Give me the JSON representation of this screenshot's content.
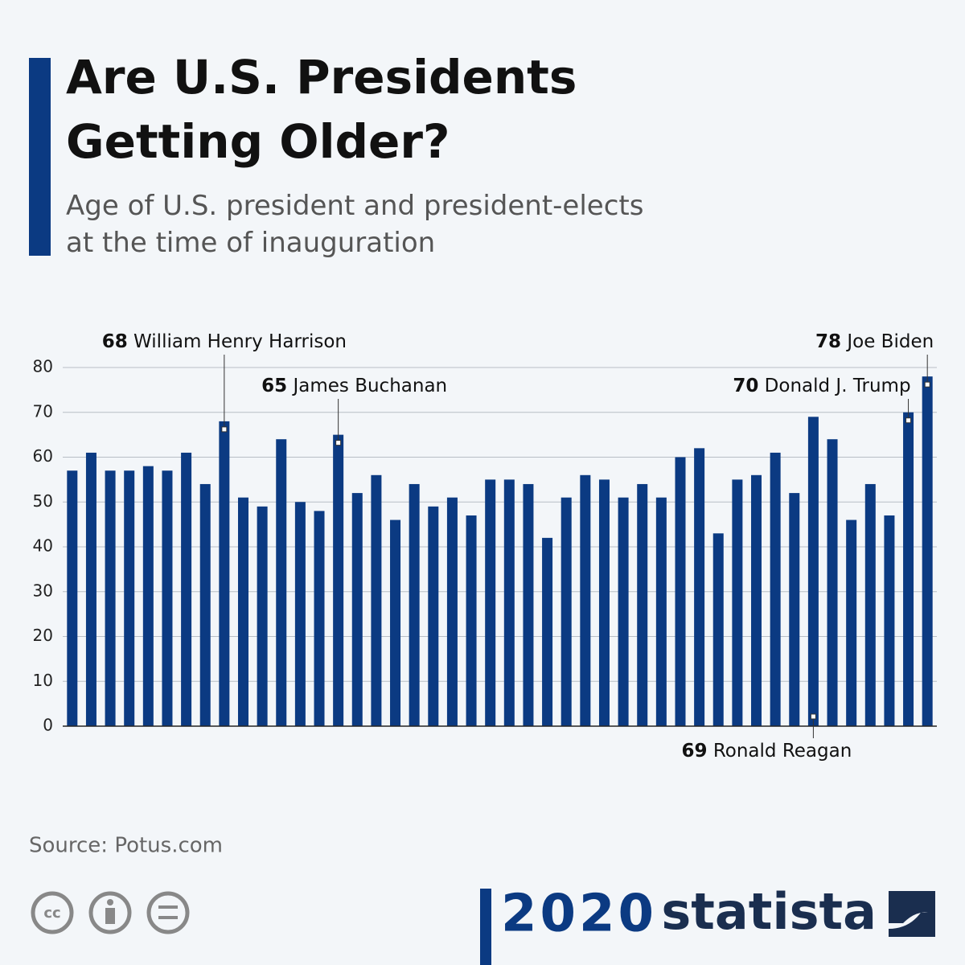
{
  "chart_data": {
    "type": "bar",
    "title": "Are U.S. Presidents Getting Older?",
    "subtitle": "Age of U.S. president and president-elects at the time of inauguration",
    "categories": [
      null,
      null,
      null,
      null,
      null,
      null,
      null,
      null,
      null,
      null,
      null,
      null,
      null,
      null,
      null,
      null,
      null,
      null,
      null,
      null,
      null,
      null,
      null,
      null,
      null,
      null,
      null,
      null,
      null,
      null,
      null,
      null,
      null,
      null,
      null,
      null,
      null,
      null,
      null,
      null,
      null,
      null,
      null,
      null,
      null,
      null
    ],
    "values": [
      57,
      61,
      57,
      57,
      58,
      57,
      61,
      54,
      68,
      51,
      49,
      64,
      50,
      48,
      65,
      52,
      56,
      46,
      54,
      49,
      51,
      47,
      55,
      55,
      54,
      42,
      51,
      56,
      55,
      51,
      54,
      51,
      60,
      62,
      43,
      55,
      56,
      61,
      52,
      69,
      64,
      46,
      54,
      47,
      70,
      78
    ],
    "point_labels": [
      null,
      null,
      null,
      null,
      null,
      null,
      null,
      null,
      "William Henry Harrison",
      null,
      null,
      null,
      null,
      null,
      "James Buchanan",
      null,
      null,
      null,
      null,
      null,
      null,
      null,
      null,
      null,
      null,
      null,
      null,
      null,
      null,
      null,
      null,
      null,
      null,
      null,
      null,
      null,
      null,
      null,
      null,
      "Ronald Reagan",
      null,
      null,
      null,
      null,
      "Donald J. Trump",
      "Joe Biden"
    ],
    "color": "#0b3a82",
    "ylim": [
      0,
      80
    ],
    "yticks": [
      0,
      10,
      20,
      30,
      40,
      50,
      60,
      70,
      80
    ],
    "grid": true,
    "source": "Source: Potus.com",
    "logo_text": "statista",
    "election_badge": "2020"
  }
}
